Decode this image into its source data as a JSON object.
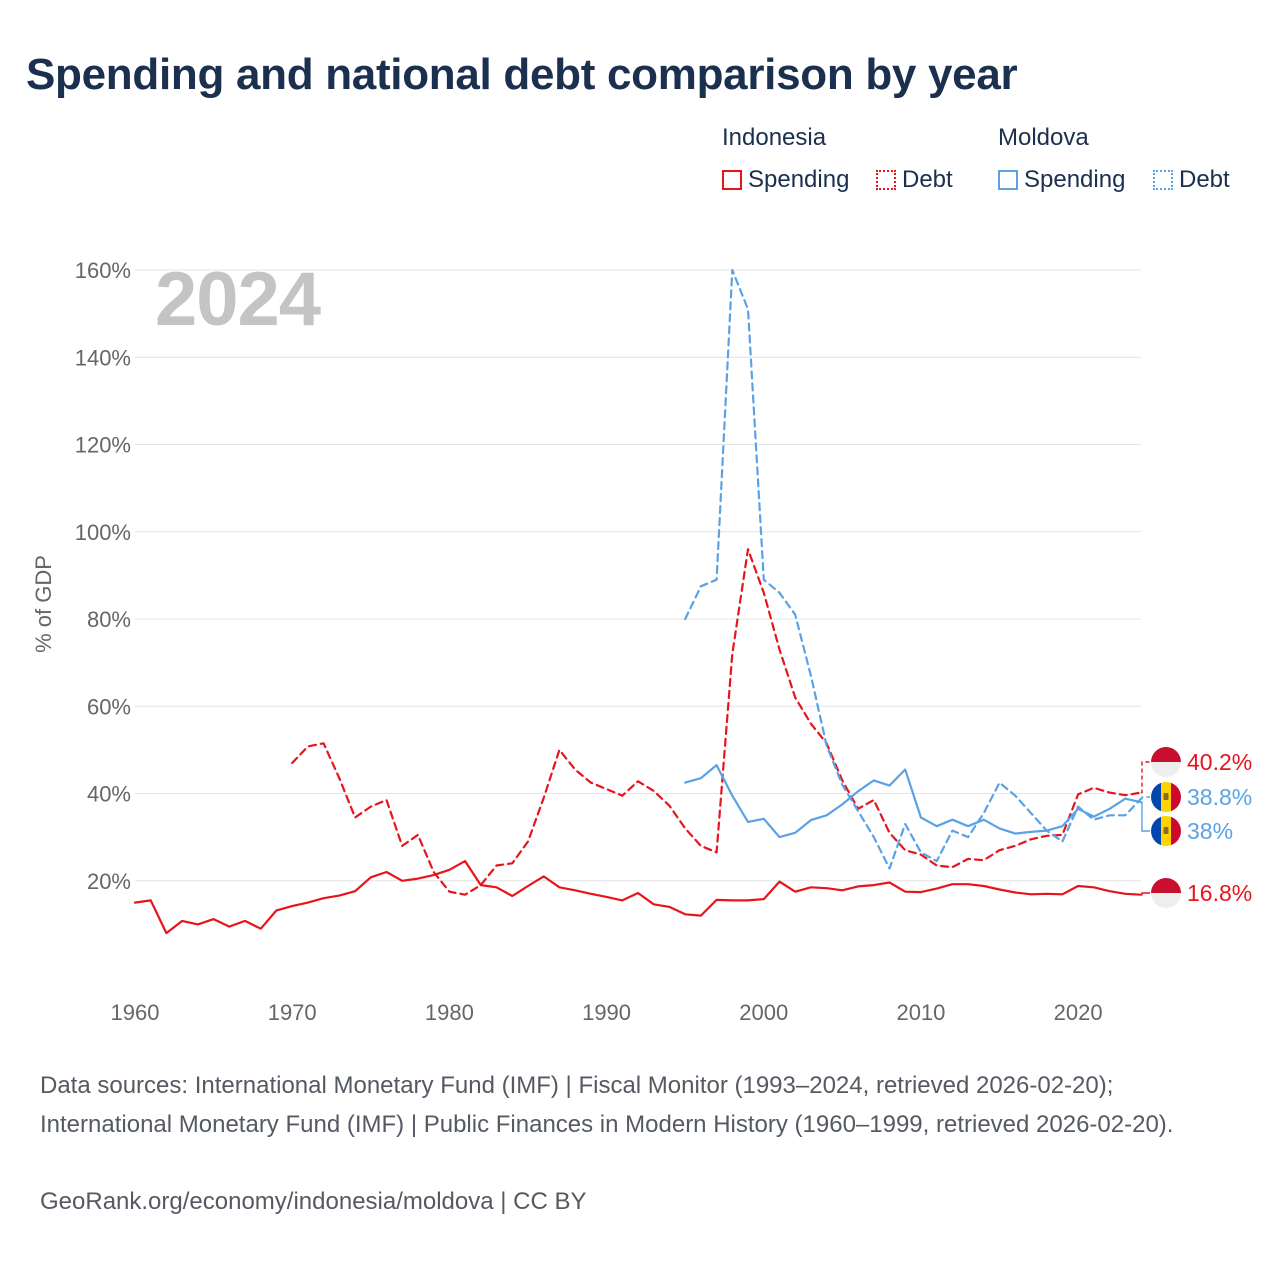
{
  "title": "Spending and national debt comparison by year",
  "legend": {
    "indonesia": {
      "country": "Indonesia",
      "spending": "Spending",
      "debt": "Debt"
    },
    "moldova": {
      "country": "Moldova",
      "spending": "Spending",
      "debt": "Debt"
    }
  },
  "colors": {
    "indonesia": "#e8141c",
    "moldova": "#5aa2e6",
    "title": "#1b2f4e"
  },
  "year_label": "2024",
  "footer": {
    "sources": "Data sources: International Monetary Fund (IMF) | Fiscal Monitor (1993–2024, retrieved 2026-02-20); International Monetary Fund (IMF) | Public Finances in Modern History (1960–1999, retrieved 2026-02-20).",
    "attribution": "GeoRank.org/economy/indonesia/moldova | CC BY"
  },
  "chart_data": {
    "type": "line",
    "title": "Spending and national debt comparison by year",
    "xlabel": "",
    "ylabel": "% of GDP",
    "xlim": [
      1960,
      2024
    ],
    "ylim": [
      0,
      160
    ],
    "x_ticks": [
      1960,
      1970,
      1980,
      1990,
      2000,
      2010,
      2020
    ],
    "y_ticks": [
      20,
      40,
      60,
      80,
      100,
      120,
      140,
      160
    ],
    "y_tick_labels": [
      "20%",
      "40%",
      "60%",
      "80%",
      "100%",
      "120%",
      "140%",
      "160%"
    ],
    "series": [
      {
        "name": "Indonesia Spending",
        "country": "indonesia",
        "style": "solid",
        "start": 1960,
        "values": [
          15.0,
          15.5,
          8.0,
          10.8,
          10.0,
          11.2,
          9.5,
          10.8,
          9.0,
          13.2,
          14.2,
          15.0,
          16.0,
          16.6,
          17.6,
          20.8,
          22.0,
          20.0,
          20.5,
          21.3,
          22.5,
          24.5,
          19.0,
          18.5,
          16.5,
          18.8,
          21.0,
          18.5,
          17.8,
          17.0,
          16.3,
          15.5,
          17.2,
          14.6,
          14.0,
          12.3,
          12.0,
          15.6,
          15.5,
          15.5,
          15.8,
          19.8,
          17.5,
          18.5,
          18.3,
          17.8,
          18.7,
          19.0,
          19.6,
          17.5,
          17.4,
          18.2,
          19.2,
          19.2,
          18.8,
          18.0,
          17.3,
          16.9,
          17.0,
          16.9,
          18.8,
          18.5,
          17.6,
          17.0,
          16.8
        ],
        "end_label": "16.8%"
      },
      {
        "name": "Indonesia Debt",
        "country": "indonesia",
        "style": "dashed",
        "start": 1970,
        "values": [
          47.0,
          50.8,
          51.5,
          43.5,
          34.5,
          37.0,
          38.5,
          28.0,
          30.5,
          22.0,
          17.5,
          16.8,
          19.0,
          23.5,
          24.0,
          29.0,
          39.0,
          50.0,
          45.5,
          42.5,
          41.0,
          39.5,
          42.8,
          40.6,
          37.2,
          32.0,
          28.0,
          26.5,
          72.0,
          96.0,
          86.0,
          73.0,
          62.0,
          56.0,
          51.5,
          43.0,
          36.5,
          38.5,
          31.0,
          27.0,
          26.0,
          23.5,
          23.1,
          25.0,
          24.7,
          27.0,
          28.0,
          29.5,
          30.3,
          30.5,
          39.8,
          41.3,
          40.2,
          39.6,
          40.2
        ],
        "end_label": "40.2%"
      },
      {
        "name": "Moldova Spending",
        "country": "moldova",
        "style": "solid",
        "start": 1995,
        "values": [
          42.5,
          43.5,
          46.5,
          39.5,
          33.5,
          34.2,
          30.0,
          31.0,
          33.9,
          35.0,
          37.5,
          40.5,
          43.0,
          41.8,
          45.5,
          34.5,
          32.5,
          34.0,
          32.5,
          34.0,
          32.0,
          30.8,
          31.2,
          31.5,
          32.5,
          36.5,
          34.7,
          36.5,
          38.8,
          38.0
        ],
        "end_label": "38%"
      },
      {
        "name": "Moldova Debt",
        "country": "moldova",
        "style": "dashed",
        "start": 1995,
        "values": [
          80.0,
          87.5,
          89.0,
          160.0,
          151.0,
          89.0,
          86.0,
          81.0,
          67.0,
          51.0,
          42.0,
          36.0,
          30.0,
          22.8,
          33.0,
          26.5,
          24.5,
          31.5,
          30.0,
          35.5,
          42.5,
          39.5,
          35.5,
          31.5,
          29.0,
          37.0,
          34.0,
          35.0,
          35.0,
          38.8
        ],
        "end_label": "38.8%"
      }
    ]
  }
}
